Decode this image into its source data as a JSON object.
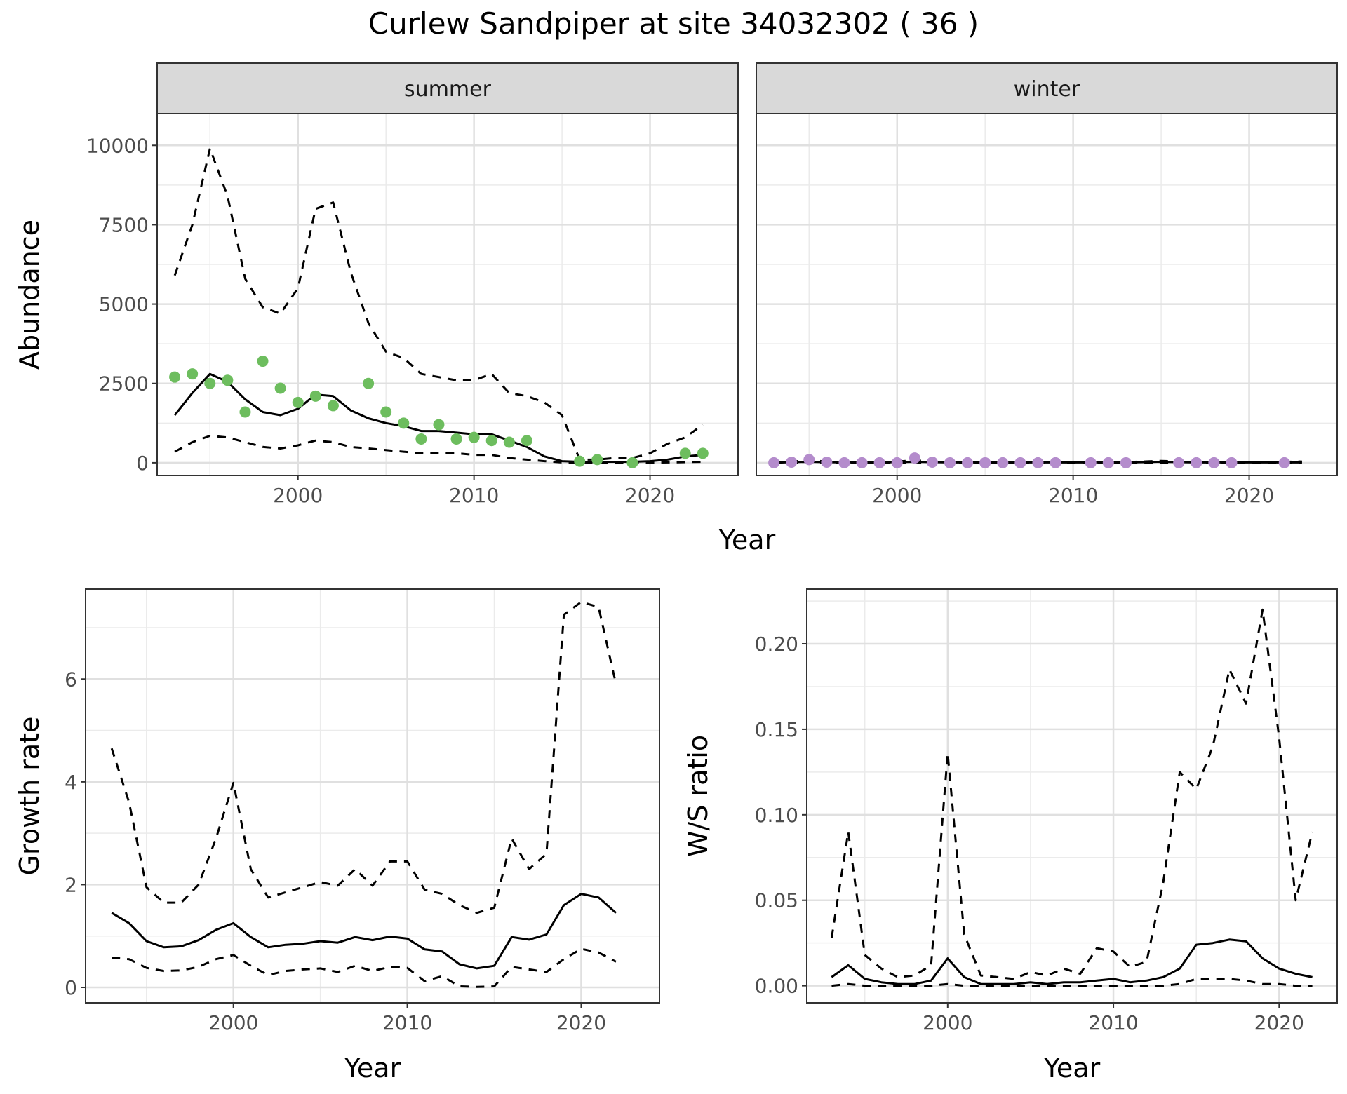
{
  "title": "Curlew Sandpiper at site 34032302 ( 36 )",
  "colors": {
    "summer_points": "#6dbd5e",
    "winter_points": "#b48ccc",
    "line": "#000000"
  },
  "chart_data": [
    {
      "type": "line",
      "panel": "abundance",
      "facets": [
        "summer",
        "winter"
      ],
      "xlabel": "Year",
      "ylabel": "Abundance",
      "xlim": [
        1992,
        2025
      ],
      "ylim": [
        -400,
        11000
      ],
      "xticks": [
        2000,
        2010,
        2020
      ],
      "yticks": [
        0,
        2500,
        5000,
        7500,
        10000
      ],
      "grid": true,
      "line_styles": {
        "estimate": "solid",
        "lower": "dashed",
        "upper": "dashed"
      },
      "summer": {
        "estimate": {
          "x": [
            1993,
            1994,
            1995,
            1996,
            1997,
            1998,
            1999,
            2000,
            2001,
            2002,
            2003,
            2004,
            2005,
            2006,
            2007,
            2008,
            2009,
            2010,
            2011,
            2012,
            2013,
            2014,
            2015,
            2016,
            2017,
            2018,
            2019,
            2020,
            2021,
            2022,
            2023
          ],
          "y": [
            1500,
            2200,
            2800,
            2550,
            2000,
            1600,
            1500,
            1700,
            2150,
            2100,
            1650,
            1400,
            1250,
            1150,
            1000,
            1000,
            950,
            900,
            900,
            700,
            500,
            200,
            50,
            30,
            30,
            30,
            30,
            50,
            100,
            200,
            250
          ]
        },
        "lower": {
          "x": [
            1993,
            1994,
            1995,
            1996,
            1997,
            1998,
            1999,
            2000,
            2001,
            2002,
            2003,
            2004,
            2005,
            2006,
            2007,
            2008,
            2009,
            2010,
            2011,
            2012,
            2013,
            2014,
            2015,
            2016,
            2017,
            2018,
            2019,
            2020,
            2021,
            2022,
            2023
          ],
          "y": [
            350,
            650,
            850,
            800,
            650,
            500,
            450,
            550,
            700,
            650,
            500,
            450,
            400,
            350,
            300,
            300,
            300,
            250,
            250,
            150,
            100,
            50,
            10,
            5,
            5,
            5,
            5,
            5,
            10,
            20,
            30
          ]
        },
        "upper": {
          "x": [
            1993,
            1994,
            1995,
            1996,
            1997,
            1998,
            1999,
            2000,
            2001,
            2002,
            2003,
            2004,
            2005,
            2006,
            2007,
            2008,
            2009,
            2010,
            2011,
            2012,
            2013,
            2014,
            2015,
            2016,
            2017,
            2018,
            2019,
            2020,
            2021,
            2022,
            2023
          ],
          "y": [
            5900,
            7500,
            9900,
            8400,
            5800,
            4900,
            4700,
            5500,
            8000,
            8200,
            6000,
            4400,
            3500,
            3300,
            2800,
            2700,
            2600,
            2600,
            2800,
            2200,
            2100,
            1900,
            1500,
            100,
            100,
            150,
            150,
            300,
            600,
            800,
            1200
          ]
        },
        "observed": {
          "x": [
            1993,
            1994,
            1995,
            1996,
            1997,
            1998,
            1999,
            2000,
            2001,
            2002,
            2004,
            2005,
            2006,
            2007,
            2008,
            2009,
            2010,
            2011,
            2012,
            2013,
            2016,
            2017,
            2019,
            2022,
            2023
          ],
          "y": [
            2700,
            2800,
            2500,
            2600,
            1600,
            3200,
            2350,
            1900,
            2100,
            1800,
            2500,
            1600,
            1250,
            750,
            1200,
            750,
            800,
            700,
            650,
            700,
            50,
            100,
            0,
            300,
            300
          ]
        }
      },
      "winter": {
        "estimate": {
          "x": [
            1993,
            1994,
            1995,
            1996,
            1997,
            1998,
            1999,
            2000,
            2001,
            2002,
            2003,
            2004,
            2005,
            2006,
            2007,
            2008,
            2009,
            2010,
            2011,
            2012,
            2013,
            2014,
            2015,
            2016,
            2017,
            2018,
            2019,
            2020,
            2021,
            2022,
            2023
          ],
          "y": [
            0,
            20,
            30,
            20,
            10,
            10,
            10,
            20,
            30,
            20,
            10,
            10,
            10,
            10,
            10,
            10,
            10,
            10,
            10,
            10,
            10,
            20,
            30,
            20,
            10,
            10,
            10,
            10,
            10,
            10,
            10
          ]
        },
        "lower": {
          "x": [
            1993,
            1994,
            1995,
            1996,
            1997,
            1998,
            1999,
            2000,
            2001,
            2002,
            2003,
            2004,
            2005,
            2006,
            2007,
            2008,
            2009,
            2010,
            2011,
            2012,
            2013,
            2014,
            2015,
            2016,
            2017,
            2018,
            2019,
            2020,
            2021,
            2022,
            2023
          ],
          "y": [
            0,
            0,
            0,
            0,
            0,
            0,
            0,
            0,
            0,
            0,
            0,
            0,
            0,
            0,
            0,
            0,
            0,
            0,
            0,
            0,
            0,
            0,
            0,
            0,
            0,
            0,
            0,
            0,
            0,
            0,
            0
          ]
        },
        "upper": {
          "x": [
            1993,
            1994,
            1995,
            1996,
            1997,
            1998,
            1999,
            2000,
            2001,
            2002,
            2003,
            2004,
            2005,
            2006,
            2007,
            2008,
            2009,
            2010,
            2011,
            2012,
            2013,
            2014,
            2015,
            2016,
            2017,
            2018,
            2019,
            2020,
            2021,
            2022,
            2023
          ],
          "y": [
            10,
            40,
            80,
            40,
            20,
            20,
            20,
            40,
            80,
            40,
            20,
            20,
            20,
            20,
            20,
            20,
            20,
            20,
            20,
            20,
            20,
            40,
            60,
            40,
            20,
            20,
            20,
            20,
            20,
            30,
            40
          ]
        },
        "observed": {
          "x": [
            1993,
            1994,
            1995,
            1996,
            1997,
            1998,
            1999,
            2000,
            2001,
            2002,
            2003,
            2004,
            2005,
            2006,
            2007,
            2008,
            2009,
            2011,
            2012,
            2013,
            2016,
            2017,
            2018,
            2019,
            2022
          ],
          "y": [
            0,
            20,
            100,
            20,
            0,
            0,
            0,
            0,
            150,
            20,
            0,
            0,
            0,
            0,
            0,
            0,
            0,
            0,
            0,
            0,
            0,
            0,
            0,
            0,
            0
          ]
        }
      }
    },
    {
      "type": "line",
      "panel": "growth",
      "xlabel": "Year",
      "ylabel": "Growth rate",
      "xlim": [
        1991.5,
        2024.5
      ],
      "ylim": [
        -0.3,
        7.75
      ],
      "xticks": [
        2000,
        2010,
        2020
      ],
      "yticks": [
        0,
        2,
        4,
        6
      ],
      "grid": true,
      "x": [
        1993,
        1994,
        1995,
        1996,
        1997,
        1998,
        1999,
        2000,
        2001,
        2002,
        2003,
        2004,
        2005,
        2006,
        2007,
        2008,
        2009,
        2010,
        2011,
        2012,
        2013,
        2014,
        2015,
        2016,
        2017,
        2018,
        2019,
        2020,
        2021,
        2022
      ],
      "series": [
        {
          "role": "estimate",
          "style": "solid",
          "values": [
            1.45,
            1.25,
            0.9,
            0.78,
            0.8,
            0.92,
            1.12,
            1.25,
            0.98,
            0.78,
            0.83,
            0.85,
            0.9,
            0.87,
            0.98,
            0.92,
            0.99,
            0.95,
            0.74,
            0.7,
            0.45,
            0.37,
            0.42,
            0.98,
            0.93,
            1.03,
            1.6,
            1.82,
            1.75,
            1.45
          ]
        },
        {
          "role": "lower",
          "style": "dashed",
          "values": [
            0.58,
            0.55,
            0.38,
            0.32,
            0.33,
            0.4,
            0.55,
            0.63,
            0.42,
            0.24,
            0.32,
            0.35,
            0.37,
            0.3,
            0.42,
            0.32,
            0.4,
            0.38,
            0.12,
            0.22,
            0.02,
            0.01,
            0.02,
            0.4,
            0.35,
            0.3,
            0.55,
            0.75,
            0.68,
            0.5
          ]
        },
        {
          "role": "upper",
          "style": "dashed",
          "values": [
            4.65,
            3.6,
            1.95,
            1.65,
            1.65,
            2.0,
            2.9,
            3.98,
            2.3,
            1.75,
            1.85,
            1.95,
            2.05,
            1.98,
            2.3,
            1.98,
            2.45,
            2.45,
            1.9,
            1.82,
            1.6,
            1.45,
            1.55,
            2.9,
            2.3,
            2.6,
            7.25,
            7.5,
            7.4,
            5.9
          ]
        }
      ]
    },
    {
      "type": "line",
      "panel": "ratio",
      "xlabel": "Year",
      "ylabel": "W/S ratio",
      "xlim": [
        1991.5,
        2023.5
      ],
      "ylim": [
        -0.01,
        0.232
      ],
      "xticks": [
        2000,
        2010,
        2020
      ],
      "yticks": [
        0.0,
        0.05,
        0.1,
        0.15,
        0.2
      ],
      "ytick_labels": [
        "0.00",
        "0.05",
        "0.10",
        "0.15",
        "0.20"
      ],
      "grid": true,
      "x": [
        1993,
        1994,
        1995,
        1996,
        1997,
        1998,
        1999,
        2000,
        2001,
        2002,
        2003,
        2004,
        2005,
        2006,
        2007,
        2008,
        2009,
        2010,
        2011,
        2012,
        2013,
        2014,
        2015,
        2016,
        2017,
        2018,
        2019,
        2020,
        2021,
        2022
      ],
      "series": [
        {
          "role": "estimate",
          "style": "solid",
          "values": [
            0.005,
            0.012,
            0.004,
            0.002,
            0.001,
            0.001,
            0.003,
            0.016,
            0.005,
            0.001,
            0.001,
            0.001,
            0.002,
            0.001,
            0.002,
            0.002,
            0.003,
            0.004,
            0.002,
            0.003,
            0.005,
            0.01,
            0.024,
            0.025,
            0.027,
            0.026,
            0.016,
            0.01,
            0.007,
            0.005
          ]
        },
        {
          "role": "lower",
          "style": "dashed",
          "values": [
            0.0,
            0.001,
            0.0,
            0.0,
            0.0,
            0.0,
            0.0,
            0.001,
            0.0,
            0.0,
            0.0,
            0.0,
            0.0,
            0.0,
            0.0,
            0.0,
            0.0,
            0.0,
            0.0,
            0.0,
            0.0,
            0.001,
            0.004,
            0.004,
            0.004,
            0.003,
            0.001,
            0.001,
            0.0,
            0.0
          ]
        },
        {
          "role": "upper",
          "style": "dashed",
          "values": [
            0.028,
            0.09,
            0.018,
            0.01,
            0.005,
            0.006,
            0.012,
            0.136,
            0.03,
            0.006,
            0.005,
            0.004,
            0.008,
            0.006,
            0.01,
            0.007,
            0.022,
            0.02,
            0.011,
            0.014,
            0.06,
            0.125,
            0.115,
            0.14,
            0.185,
            0.165,
            0.22,
            0.145,
            0.05,
            0.09
          ]
        }
      ]
    }
  ]
}
